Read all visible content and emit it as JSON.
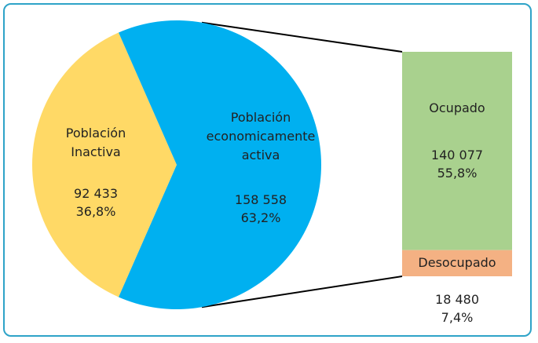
{
  "chart_data": {
    "type": "pie-of-bar",
    "pie": {
      "labels": [
        "Población Inactiva",
        "Población economicamente activa"
      ],
      "values": [
        92433,
        158558
      ],
      "value_labels": [
        "92 433",
        "158 558"
      ],
      "percents": [
        36.8,
        63.2
      ],
      "percent_labels": [
        "36,8%",
        "63,2%"
      ],
      "colors": [
        "#ffd966",
        "#00b0f0"
      ]
    },
    "bar": {
      "labels": [
        "Ocupado",
        "Desocupado"
      ],
      "values": [
        140077,
        18480
      ],
      "value_labels": [
        "140 077",
        "18 480"
      ],
      "percents": [
        55.8,
        7.4
      ],
      "percent_labels": [
        "55,8%",
        "7,4%"
      ],
      "colors": [
        "#a9d18e",
        "#f4b183"
      ]
    }
  }
}
